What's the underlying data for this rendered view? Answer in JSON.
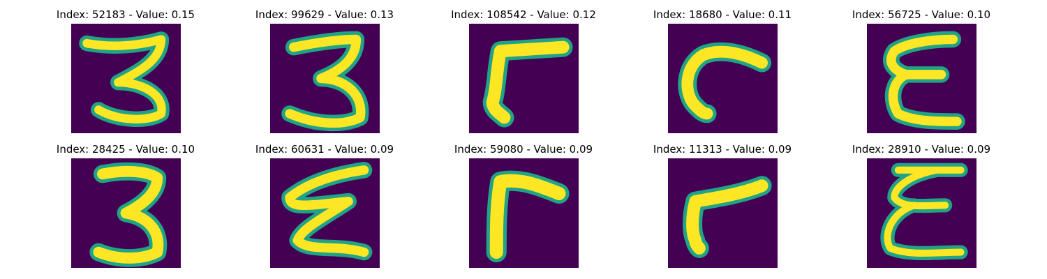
{
  "colors": {
    "background": "#440154",
    "low_mid": "#30678d",
    "mid": "#20a386",
    "high": "#fde725"
  },
  "panels": [
    {
      "title": "Index: 52183 - Value: 0.15",
      "glyph": "digit-3-upper"
    },
    {
      "title": "Index: 99629 - Value: 0.13",
      "glyph": "digit-3-bold"
    },
    {
      "title": "Index: 108542 - Value: 0.12",
      "glyph": "angle-bar"
    },
    {
      "title": "Index: 18680 - Value: 0.11",
      "glyph": "hook-c"
    },
    {
      "title": "Index: 56725 - Value: 0.10",
      "glyph": "epsilon"
    },
    {
      "title": "Index: 28425 - Value: 0.10",
      "glyph": "digit-3-narrow"
    },
    {
      "title": "Index: 60631 - Value: 0.09",
      "glyph": "zigzag-e"
    },
    {
      "title": "Index: 59080 - Value: 0.09",
      "glyph": "angle-r"
    },
    {
      "title": "Index: 11313 - Value: 0.09",
      "glyph": "slanted-r"
    },
    {
      "title": "Index: 28910 - Value: 0.09",
      "glyph": "epsilon-thin"
    }
  ]
}
